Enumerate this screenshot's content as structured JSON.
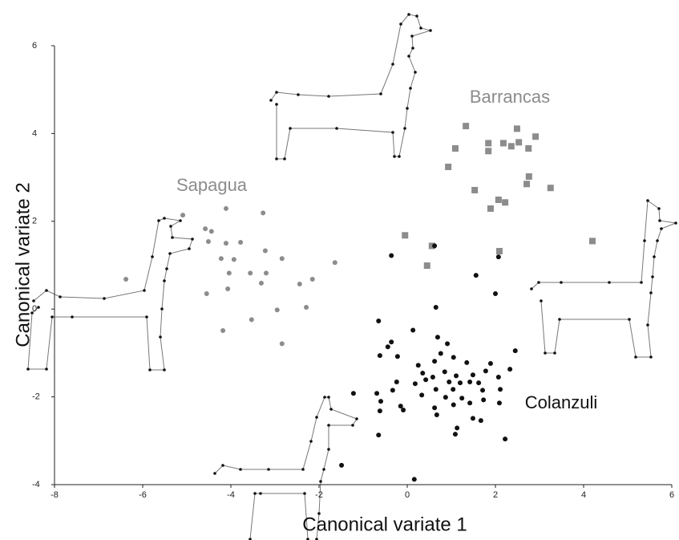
{
  "chart_data": {
    "type": "scatter",
    "xlabel": "Canonical variate 1",
    "ylabel": "Canonical variate 2",
    "xlim": [
      -8,
      6
    ],
    "ylim": [
      -4,
      6
    ],
    "xticks": [
      -8,
      -6,
      -4,
      -2,
      0,
      2,
      4,
      6
    ],
    "yticks": [
      -4,
      -2,
      0,
      2,
      4,
      6
    ],
    "grid": false,
    "series": [
      {
        "name": "Sapagua",
        "color": "#8c8c8c",
        "marker": "circle",
        "x": [
          -5.09,
          -6.38,
          -4.58,
          -4.44,
          -4.11,
          -3.27,
          -4.51,
          -4.11,
          -3.78,
          -4.22,
          -3.93,
          -3.22,
          -2.84,
          -1.64,
          -4.04,
          -3.56,
          -3.2,
          -2.15,
          -4.55,
          -4.07,
          -3.31,
          -2.44,
          -2.95,
          -2.29,
          -3.53,
          -4.18,
          -2.84
        ],
        "values": [
          2.14,
          0.68,
          1.83,
          1.77,
          2.29,
          2.19,
          1.54,
          1.5,
          1.52,
          1.15,
          1.13,
          1.33,
          1.15,
          1.06,
          0.82,
          0.82,
          0.82,
          0.68,
          0.35,
          0.46,
          0.59,
          0.57,
          -0.02,
          0.04,
          -0.24,
          -0.49,
          -0.79
        ]
      },
      {
        "name": "Barrancas",
        "color": "#8c8c8c",
        "marker": "square",
        "x": [
          1.33,
          1.09,
          1.84,
          1.84,
          2.18,
          2.36,
          2.49,
          2.53,
          2.75,
          2.91,
          0.93,
          2.76,
          1.53,
          2.71,
          3.25,
          2.07,
          2.22,
          1.89,
          -0.05,
          0.56,
          2.09,
          0.45,
          4.2
        ],
        "values": [
          4.17,
          3.66,
          3.78,
          3.6,
          3.78,
          3.71,
          4.11,
          3.8,
          3.66,
          3.93,
          3.24,
          3.02,
          2.71,
          2.85,
          2.76,
          2.49,
          2.43,
          2.29,
          1.68,
          1.44,
          1.32,
          0.99,
          1.55
        ]
      },
      {
        "name": "Colanzuli",
        "color": "#111111",
        "marker": "circle",
        "x": [
          -0.36,
          0.62,
          1.56,
          2.0,
          0.65,
          2.07,
          -0.65,
          0.13,
          0.69,
          -0.36,
          -0.44,
          0.91,
          2.45,
          -0.62,
          -0.22,
          0.76,
          1.05,
          0.25,
          0.62,
          1.35,
          1.89,
          2.33,
          0.35,
          0.58,
          0.85,
          1.11,
          1.49,
          1.78,
          2.07,
          -0.24,
          0.18,
          0.42,
          0.95,
          1.2,
          1.42,
          1.62,
          1.04,
          1.71,
          2.11,
          0.65,
          -0.33,
          -0.69,
          0.33,
          0.87,
          1.24,
          1.73,
          -0.6,
          -0.15,
          -0.09,
          0.62,
          1.05,
          1.42,
          2.09,
          -0.62,
          0.67,
          1.49,
          1.67,
          1.13,
          1.09,
          2.22,
          -0.65,
          -1.22,
          -1.49,
          0.16
        ],
        "values": [
          1.22,
          1.44,
          0.77,
          0.35,
          0.04,
          1.19,
          -0.27,
          -0.48,
          -0.64,
          -0.75,
          -0.86,
          -0.79,
          -0.95,
          -1.06,
          -1.08,
          -1.01,
          -1.1,
          -1.28,
          -1.19,
          -1.22,
          -1.24,
          -1.37,
          -1.46,
          -1.55,
          -1.43,
          -1.52,
          -1.5,
          -1.41,
          -1.55,
          -1.66,
          -1.7,
          -1.61,
          -1.66,
          -1.68,
          -1.66,
          -1.68,
          -1.83,
          -1.85,
          -1.83,
          -1.83,
          -1.85,
          -1.92,
          -1.96,
          -2.01,
          -2.03,
          -2.07,
          -2.1,
          -2.21,
          -2.3,
          -2.25,
          -2.18,
          -2.14,
          -2.14,
          -2.32,
          -2.41,
          -2.49,
          -2.54,
          -2.71,
          -2.85,
          -2.96,
          -2.87,
          -1.92,
          -3.56,
          -3.88
        ]
      }
    ]
  }
}
